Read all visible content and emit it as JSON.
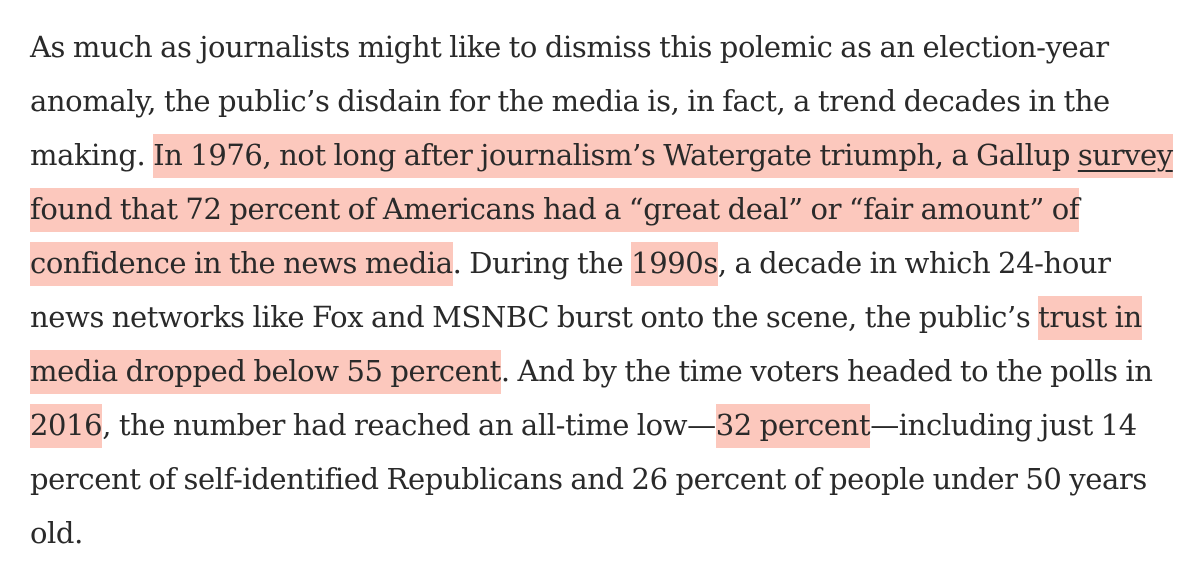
{
  "paragraph": {
    "seg1": "As much as journalists might like to dismiss this polemic as an election-year anomaly, the public’s disdain for the media is, in fact, a trend decades in the making. ",
    "hl1_pre": "In 1976, not long after journalism’s Watergate triumph, a Gallup ",
    "hl1_link": "survey",
    "hl1_post": " found that 72 percent of Americans had a “great deal” or “fair amount” of confidence in the news media",
    "seg2": ". During the ",
    "hl2": "1990s",
    "seg3": ", a decade in which 24-hour news networks like Fox and MSNBC burst onto the scene, the public’s ",
    "hl3": "trust in media dropped below 55 percent",
    "seg4": ". And by the time voters headed to the polls in ",
    "hl4": "2016",
    "seg5": ", the number had reached an all-time low—",
    "hl5": "32 percent",
    "seg6": "—including just 14 percent of self-identified Republicans and 26 percent of people under 50 years old."
  },
  "colors": {
    "highlight": "#fcc8bd",
    "text": "#2a2a2a",
    "background": "#ffffff"
  }
}
